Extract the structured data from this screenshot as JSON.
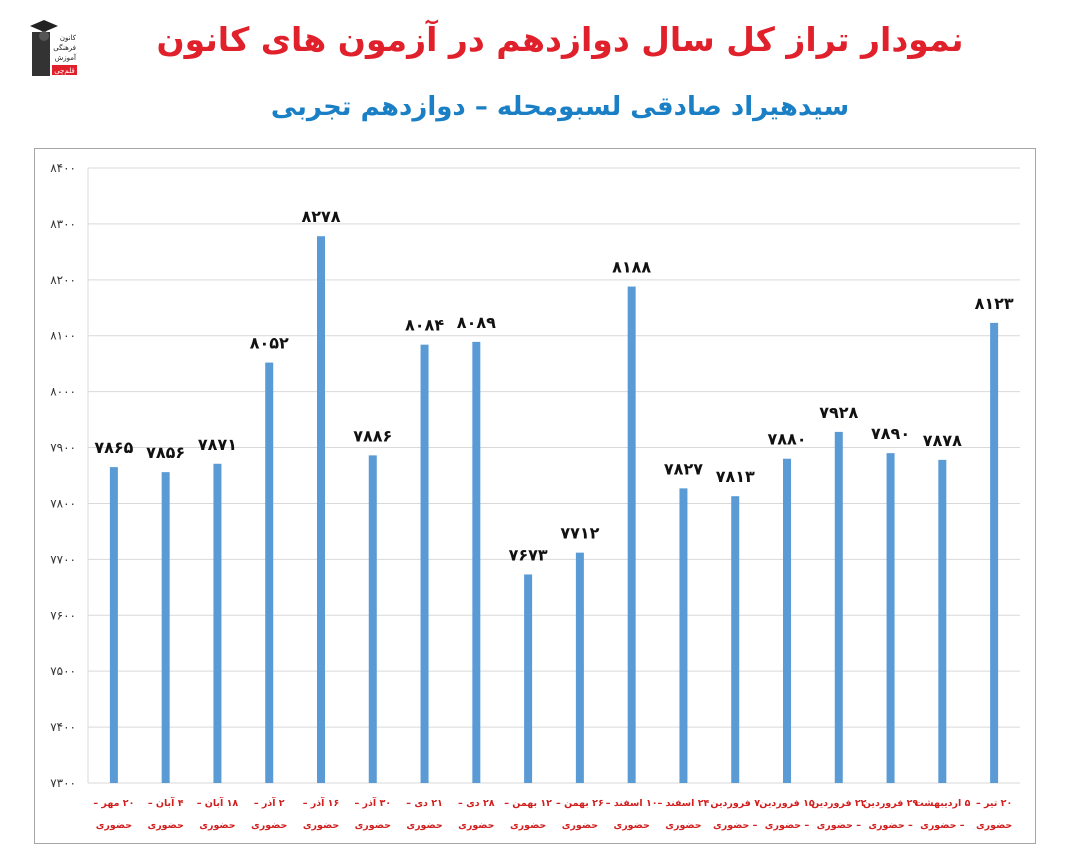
{
  "header": {
    "title": "نمودار تراز کل سال دوازدهم در آزمون های کانون",
    "subtitle": "سیدهیراد صادقی لسبومحله – دوازدهم تجربی",
    "logo_lines": [
      "کانون",
      "فرهنگی",
      "آموزش",
      "قلم‌چی"
    ]
  },
  "chart_data": {
    "type": "bar",
    "title": "",
    "xlabel": "",
    "ylabel": "",
    "ylim": [
      7300,
      8400
    ],
    "yticks": [
      7300,
      7400,
      7500,
      7600,
      7700,
      7800,
      7900,
      8000,
      8100,
      8200,
      8300,
      8400
    ],
    "ytick_labels": [
      "۷۳۰۰",
      "۷۴۰۰",
      "۷۵۰۰",
      "۷۶۰۰",
      "۷۷۰۰",
      "۷۸۰۰",
      "۷۹۰۰",
      "۸۰۰۰",
      "۸۱۰۰",
      "۸۲۰۰",
      "۸۳۰۰",
      "۸۴۰۰"
    ],
    "grid": true,
    "bar_color": "#5b9bd5",
    "categories": [
      [
        "۲۰ مهر –",
        "حضوری"
      ],
      [
        "۴ آبان –",
        "حضوری"
      ],
      [
        "۱۸ آبان –",
        "حضوری"
      ],
      [
        "۲ آذر –",
        "حضوری"
      ],
      [
        "۱۶ آذر –",
        "حضوری"
      ],
      [
        "۳۰ آذر –",
        "حضوری"
      ],
      [
        "۲۱ دی –",
        "حضوری"
      ],
      [
        "۲۸ دی –",
        "حضوری"
      ],
      [
        "۱۲ بهمن –",
        "حضوری"
      ],
      [
        "۲۶ بهمن –",
        "حضوری"
      ],
      [
        "۱۰ اسفند –",
        "حضوری"
      ],
      [
        "۲۴ اسفند –",
        "حضوری"
      ],
      [
        "۷ فروردین",
        "– حضوری"
      ],
      [
        "۱۵ فروردین",
        "– حضوری"
      ],
      [
        "۲۲ فروردین",
        "– حضوری"
      ],
      [
        "۲۹ فروردین",
        "– حضوری"
      ],
      [
        "۵ اردیبهشت",
        "– حضوری"
      ],
      [
        "۲۰ تیر –",
        "حضوری"
      ]
    ],
    "values": [
      7865,
      7856,
      7871,
      8052,
      8278,
      7886,
      8084,
      8089,
      7673,
      7712,
      8188,
      7827,
      7813,
      7880,
      7928,
      7890,
      7878,
      8123
    ],
    "value_labels": [
      "۷۸۶۵",
      "۷۸۵۶",
      "۷۸۷۱",
      "۸۰۵۲",
      "۸۲۷۸",
      "۷۸۸۶",
      "۸۰۸۴",
      "۸۰۸۹",
      "۷۶۷۳",
      "۷۷۱۲",
      "۸۱۸۸",
      "۷۸۲۷",
      "۷۸۱۳",
      "۷۸۸۰",
      "۷۹۲۸",
      "۷۸۹۰",
      "۷۸۷۸",
      "۸۱۲۳"
    ]
  }
}
